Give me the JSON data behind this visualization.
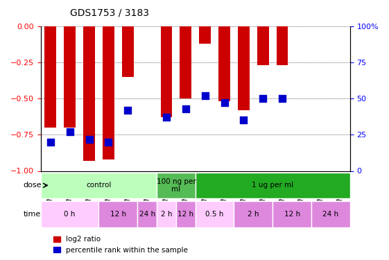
{
  "title": "GDS1753 / 3183",
  "samples": [
    "GSM93635",
    "GSM93638",
    "GSM93649",
    "GSM93641",
    "GSM93644",
    "GSM93645",
    "GSM93650",
    "GSM93646",
    "GSM93648",
    "GSM93642",
    "GSM93643",
    "GSM93639",
    "GSM93647",
    "GSM93637",
    "GSM93640",
    "GSM93636"
  ],
  "log2_ratio": [
    -0.7,
    -0.7,
    -0.93,
    -0.92,
    -0.35,
    0.0,
    -0.63,
    -0.5,
    -0.12,
    -0.52,
    -0.58,
    -0.27,
    -0.27,
    0.0,
    0.0,
    0.0
  ],
  "percentile_rank": [
    20,
    27,
    22,
    20,
    42,
    0,
    37,
    43,
    52,
    47,
    35,
    50,
    50,
    0,
    0,
    0
  ],
  "has_blue": [
    true,
    true,
    true,
    true,
    true,
    false,
    true,
    true,
    true,
    true,
    true,
    true,
    true,
    false,
    false,
    false
  ],
  "ylim_left": [
    -1.0,
    0.0
  ],
  "ylim_right": [
    0.0,
    100.0
  ],
  "yticks_left": [
    0.0,
    -0.25,
    -0.5,
    -0.75,
    -1.0
  ],
  "yticks_right": [
    0,
    25,
    50,
    75,
    100
  ],
  "bar_color": "#cc0000",
  "dot_color": "#0000cc",
  "grid_color": "#000000",
  "bg_color": "#ffffff",
  "plot_bg": "#ffffff",
  "dose_groups": [
    {
      "label": "control",
      "start": 0,
      "end": 6,
      "color": "#ccffcc"
    },
    {
      "label": "100 ng per\nml",
      "start": 6,
      "end": 8,
      "color": "#ccffcc"
    },
    {
      "label": "1 ug per ml",
      "start": 8,
      "end": 16,
      "color": "#33cc33"
    }
  ],
  "time_groups": [
    {
      "label": "0 h",
      "start": 0,
      "end": 3,
      "color": "#ffaaff"
    },
    {
      "label": "12 h",
      "start": 3,
      "end": 5,
      "color": "#cc66cc"
    },
    {
      "label": "24 h",
      "start": 5,
      "end": 6,
      "color": "#cc66cc"
    },
    {
      "label": "2 h",
      "start": 6,
      "end": 7,
      "color": "#ffaaff"
    },
    {
      "label": "12 h",
      "start": 7,
      "end": 8,
      "color": "#cc66cc"
    },
    {
      "label": "0.5 h",
      "start": 8,
      "end": 10,
      "color": "#ffaaff"
    },
    {
      "label": "2 h",
      "start": 10,
      "end": 12,
      "color": "#cc66cc"
    },
    {
      "label": "12 h",
      "start": 12,
      "end": 14,
      "color": "#cc66cc"
    },
    {
      "label": "24 h",
      "start": 14,
      "end": 16,
      "color": "#cc66cc"
    }
  ],
  "dose_label": "dose",
  "time_label": "time",
  "legend_bar": "log2 ratio",
  "legend_dot": "percentile rank within the sample",
  "bar_width": 0.6,
  "dot_size": 60
}
